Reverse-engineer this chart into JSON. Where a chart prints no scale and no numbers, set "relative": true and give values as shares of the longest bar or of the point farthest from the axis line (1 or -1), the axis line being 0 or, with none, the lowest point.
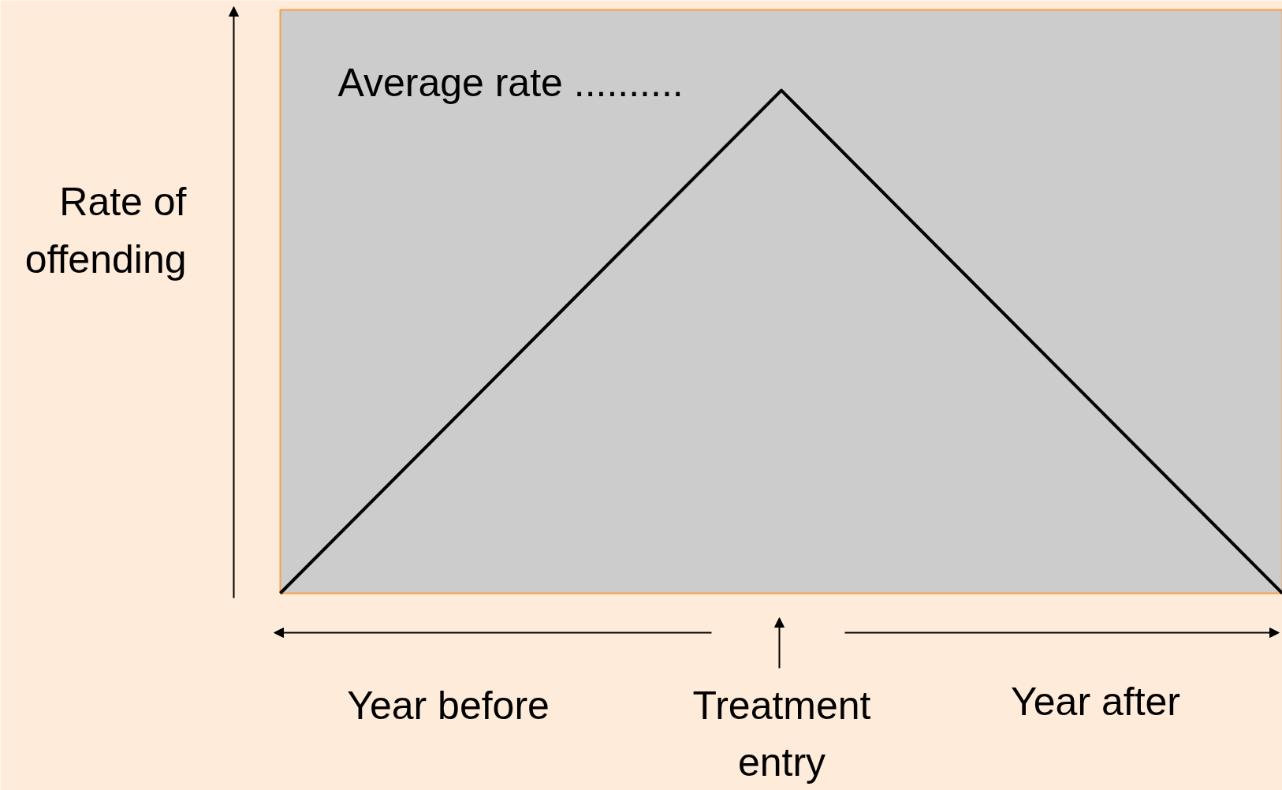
{
  "chart_data": {
    "type": "line",
    "relative": true,
    "categories": [
      null,
      null,
      null
    ],
    "color": "#000000",
    "values": [
      0,
      1,
      0
    ],
    "line_style": "solid",
    "tick_labels": false,
    "ylabel": "Rate of offending",
    "annotations": [
      "Average rate ..........",
      "Year before",
      "Treatment entry",
      "Year after"
    ]
  }
}
